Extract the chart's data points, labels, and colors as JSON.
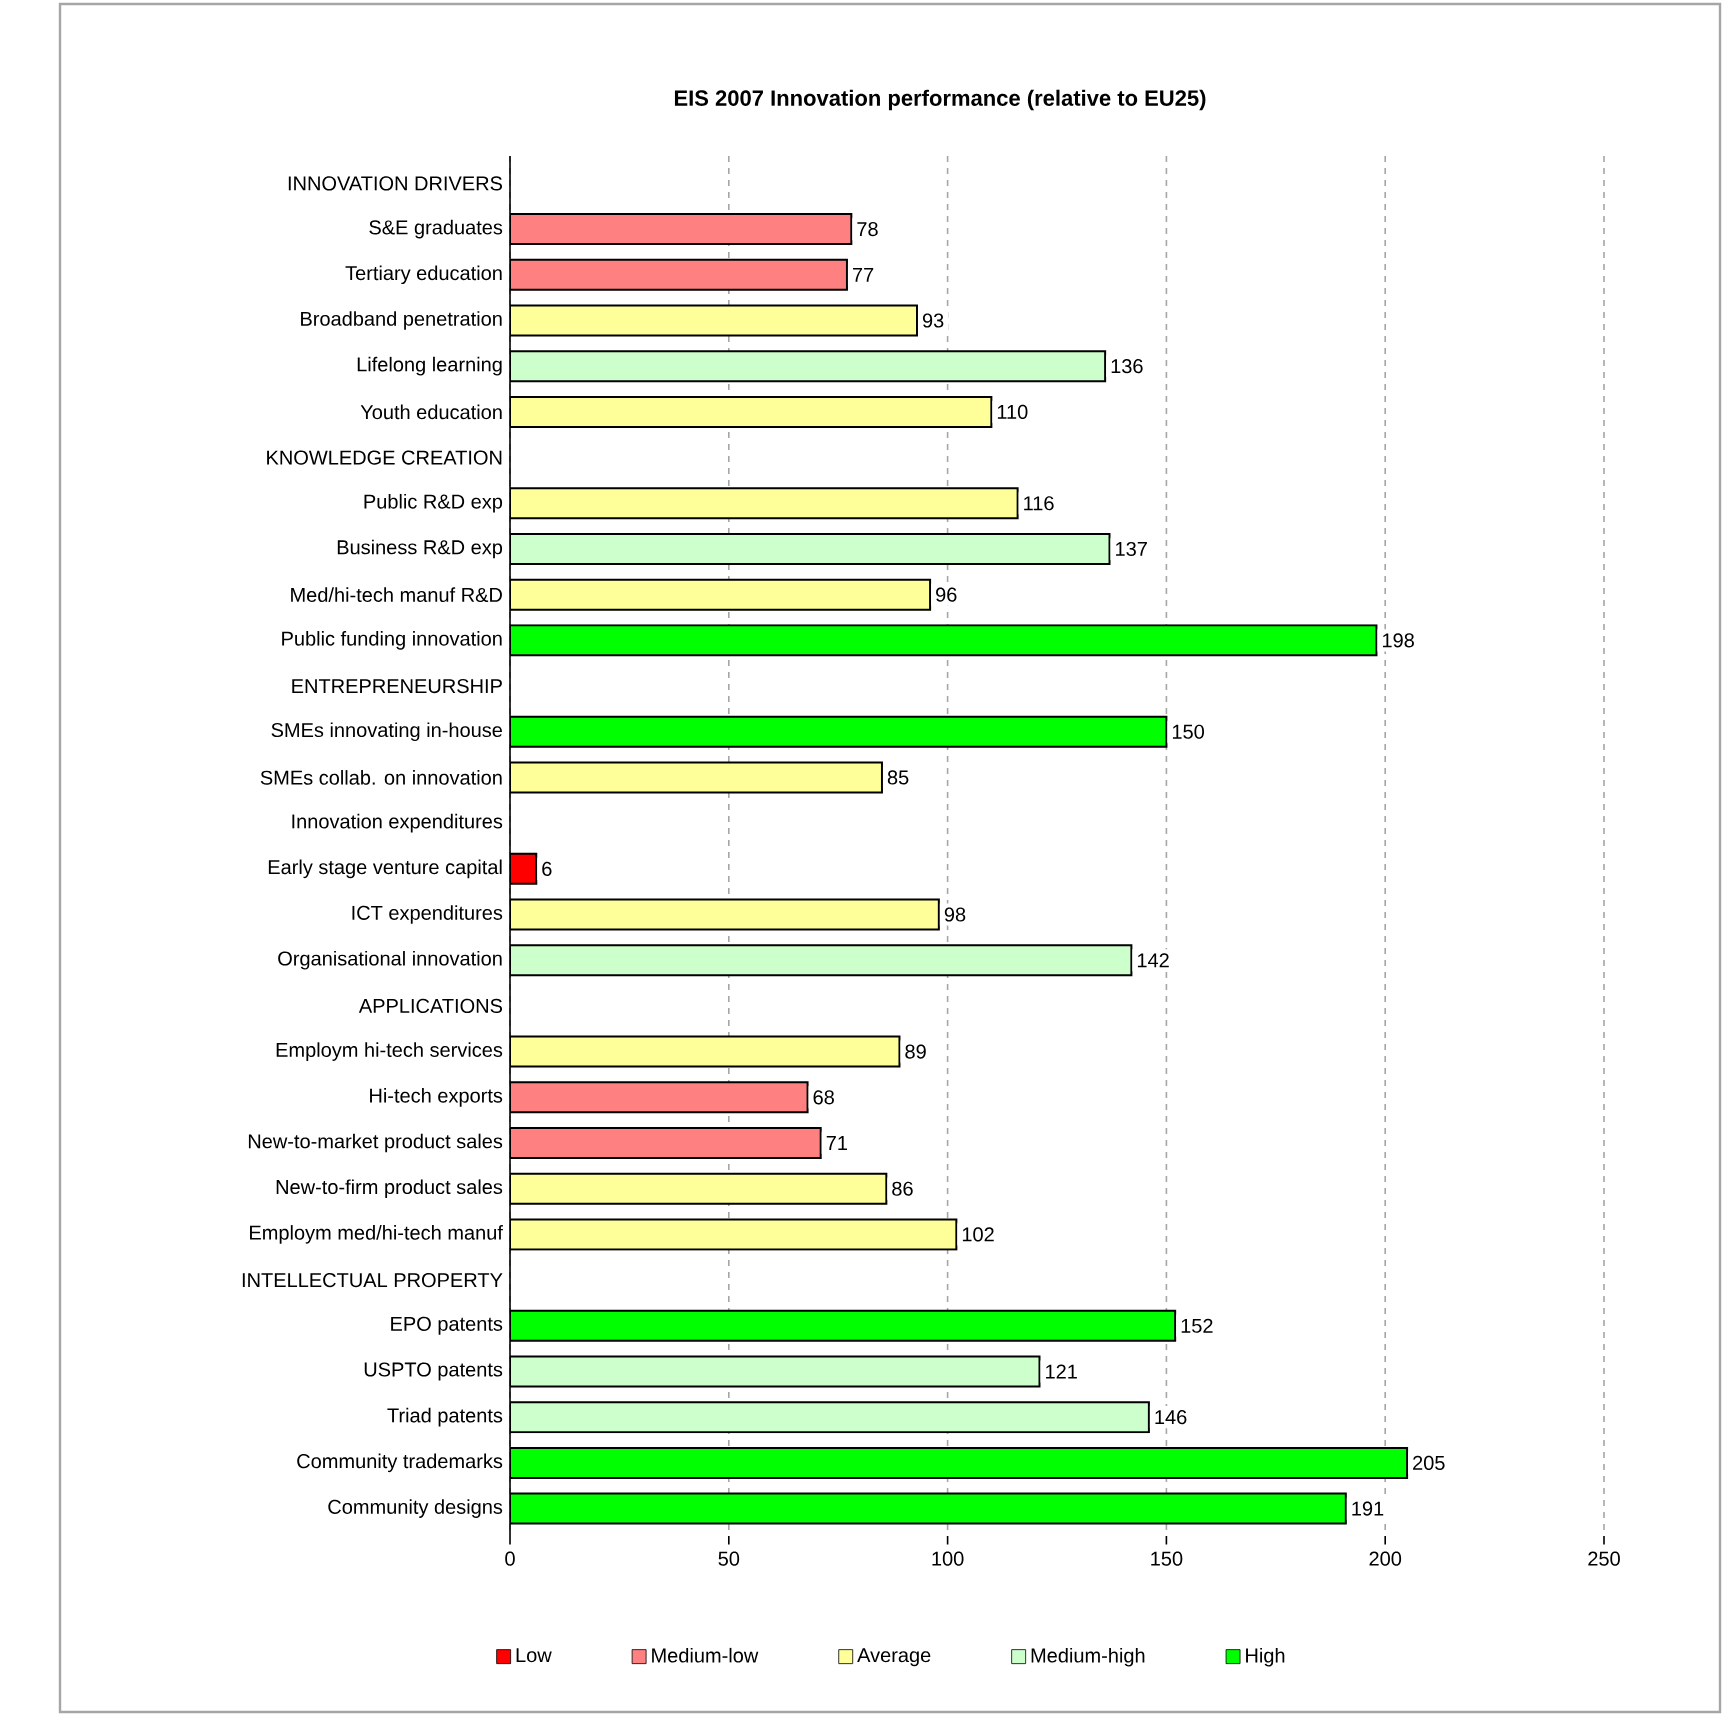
{
  "chart_data": {
    "type": "bar",
    "orientation": "horizontal",
    "stacked": true,
    "title": "EIS 2007 Innovation performance (relative to EU25)",
    "categories": [
      "INNOVATION DRIVERS",
      "S&E graduates",
      "Tertiary education",
      "Broadband penetration",
      "Lifelong learning",
      "Youth education",
      "KNOWLEDGE CREATION",
      "Public R&D exp",
      "Business R&D exp",
      "Med/hi-tech manuf R&D",
      "Public funding innovation",
      "ENTREPRENEURSHIP",
      "SMEs innovating in-house",
      "SMEs collab. on innovation",
      "Innovation expenditures",
      "Early stage venture capital",
      "ICT expenditures",
      "Organisational innovation",
      "APPLICATIONS",
      "Employm hi-tech services",
      "Hi-tech exports",
      "New-to-market product sales",
      "New-to-firm product sales",
      "Employm med/hi-tech manuf",
      "INTELLECTUAL PROPERTY",
      "EPO patents",
      "USPTO patents",
      "Triad patents",
      "Community trademarks",
      "Community designs"
    ],
    "series": [
      {
        "name": "Low",
        "color": "#ff0000",
        "values": [
          null,
          null,
          null,
          null,
          null,
          null,
          null,
          null,
          null,
          null,
          null,
          null,
          null,
          null,
          null,
          6,
          null,
          null,
          null,
          null,
          null,
          null,
          null,
          null,
          null,
          null,
          null,
          null,
          null,
          null
        ]
      },
      {
        "name": "Medium-low",
        "color": "#ff8080",
        "values": [
          null,
          78,
          77,
          null,
          null,
          null,
          null,
          null,
          null,
          null,
          null,
          null,
          null,
          null,
          null,
          null,
          null,
          null,
          null,
          null,
          68,
          71,
          null,
          null,
          null,
          null,
          null,
          null,
          null,
          null
        ]
      },
      {
        "name": "Average",
        "color": "#ffff99",
        "values": [
          null,
          null,
          null,
          93,
          null,
          110,
          null,
          116,
          null,
          96,
          null,
          null,
          null,
          85,
          null,
          null,
          98,
          null,
          null,
          89,
          null,
          null,
          86,
          102,
          null,
          null,
          null,
          null,
          null,
          null
        ]
      },
      {
        "name": "Medium-high",
        "color": "#ccffcc",
        "values": [
          null,
          null,
          null,
          null,
          136,
          null,
          null,
          null,
          137,
          null,
          null,
          null,
          null,
          null,
          null,
          null,
          null,
          142,
          null,
          null,
          null,
          null,
          null,
          null,
          null,
          null,
          121,
          146,
          null,
          null
        ]
      },
      {
        "name": "High",
        "color": "#00ff00",
        "values": [
          null,
          null,
          null,
          null,
          null,
          null,
          null,
          null,
          null,
          null,
          198,
          null,
          150,
          null,
          null,
          null,
          null,
          null,
          null,
          null,
          null,
          null,
          null,
          null,
          null,
          152,
          null,
          null,
          205,
          191
        ]
      }
    ],
    "xlim": [
      0,
      250
    ],
    "xticks": [
      0,
      50,
      100,
      150,
      200,
      250
    ],
    "grid": "x",
    "legend": "bottom",
    "data_labels": true
  }
}
